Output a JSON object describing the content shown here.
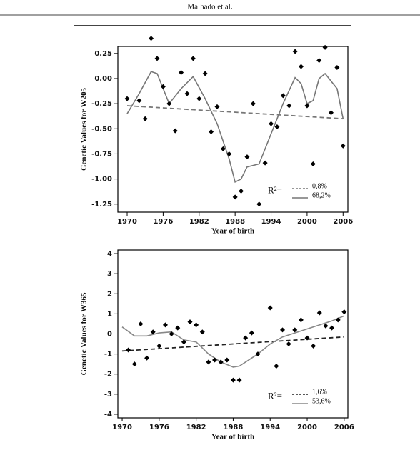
{
  "header": {
    "running_head": "Malhado et al."
  },
  "chart_data": [
    {
      "type": "scatter",
      "xlabel": "Year of birth",
      "ylabel": "Genetic Values for W205",
      "xlim": [
        1968.45,
        2006.8
      ],
      "ylim": [
        -1.33,
        0.32
      ],
      "xticks": [
        1970,
        1976,
        1982,
        1988,
        1994,
        2000,
        2006
      ],
      "yticks": [
        0.25,
        {
          "value": 0,
          "label": "0.00"
        },
        -0.25,
        {
          "value": -0.5,
          "label": "-0.50"
        },
        -0.75,
        {
          "value": -1,
          "label": "-1.00"
        },
        -1.25
      ],
      "points": {
        "color": "#000000",
        "x": [
          1970,
          1972,
          1973,
          1974,
          1975,
          1976,
          1977,
          1978,
          1979,
          1980,
          1981,
          1982,
          1983,
          1984,
          1985,
          1986,
          1987,
          1988,
          1989,
          1990,
          1991,
          1992,
          1993,
          1994,
          1995,
          1996,
          1997,
          1998,
          1999,
          2000,
          2001,
          2002,
          2003,
          2004,
          2005,
          2006
        ],
        "values": [
          -0.2,
          -0.22,
          -0.4,
          0.4,
          0.2,
          -0.08,
          -0.25,
          -0.52,
          0.06,
          -0.15,
          0.2,
          -0.2,
          0.05,
          -0.53,
          -0.28,
          -0.7,
          -0.75,
          -1.18,
          -1.12,
          -0.78,
          -0.25,
          -1.25,
          -0.84,
          -0.45,
          -0.48,
          -0.17,
          -0.27,
          0.27,
          0.12,
          -0.27,
          -0.85,
          0.18,
          0.31,
          -0.34,
          0.11,
          -0.67
        ]
      },
      "legend_prefix": "R²=",
      "series": [
        {
          "name": "0,8%",
          "color": "#777777",
          "dashed": true,
          "x": [
            1970,
            2006
          ],
          "values": [
            -0.27,
            -0.4
          ]
        },
        {
          "name": "68,2%",
          "color": "#777777",
          "dashed": false,
          "x": [
            1970,
            1972,
            1974,
            1975,
            1977,
            1979,
            1981,
            1983,
            1985,
            1987,
            1988,
            1989,
            1990,
            1992,
            1994,
            1996,
            1998,
            1999,
            2000,
            2001,
            2002,
            2003,
            2005,
            2006
          ],
          "values": [
            -0.35,
            -0.15,
            0.07,
            0.05,
            -0.25,
            -0.1,
            0.02,
            -0.2,
            -0.45,
            -0.8,
            -1.03,
            -1.0,
            -0.88,
            -0.85,
            -0.55,
            -0.25,
            0.01,
            -0.05,
            -0.25,
            -0.22,
            0.0,
            0.05,
            -0.1,
            -0.4
          ]
        }
      ]
    },
    {
      "type": "scatter",
      "xlabel": "Year of birth",
      "ylabel": "Genetic Values for W365",
      "xlim": [
        1969.3,
        2006.6
      ],
      "ylim": [
        -4.18,
        4.18
      ],
      "xticks": [
        1970,
        1976,
        1982,
        1988,
        1994,
        2000,
        2006
      ],
      "yticks": [
        4,
        3,
        2,
        1,
        0,
        -1,
        -2,
        -3,
        -4
      ],
      "points": {
        "color": "#000000",
        "x": [
          1971,
          1972,
          1973,
          1974,
          1975,
          1976,
          1977,
          1978,
          1979,
          1980,
          1981,
          1982,
          1983,
          1984,
          1985,
          1986,
          1987,
          1988,
          1989,
          1990,
          1991,
          1992,
          1994,
          1995,
          1996,
          1997,
          1998,
          1999,
          2000,
          2001,
          2002,
          2003,
          2004,
          2005,
          2006
        ],
        "values": [
          -0.8,
          -1.5,
          0.5,
          -1.2,
          0.1,
          -0.6,
          0.45,
          0.0,
          0.3,
          -0.4,
          0.6,
          0.45,
          0.1,
          -1.4,
          -1.3,
          -1.4,
          -1.3,
          -2.3,
          -2.3,
          -0.2,
          0.05,
          -1.0,
          1.3,
          -1.6,
          0.2,
          -0.5,
          0.2,
          0.7,
          -0.2,
          -0.6,
          1.05,
          0.4,
          0.3,
          0.7,
          1.1
        ]
      },
      "legend_prefix": "R²=",
      "series": [
        {
          "name": "1,6%",
          "color": "#222222",
          "dashed": true,
          "x": [
            1970,
            2006
          ],
          "values": [
            -0.85,
            -0.15
          ]
        },
        {
          "name": "53,6%",
          "color": "#888888",
          "dashed": false,
          "x": [
            1970,
            1972,
            1974,
            1976,
            1978,
            1980,
            1982,
            1984,
            1986,
            1988,
            1989,
            1990,
            1992,
            1994,
            1996,
            1998,
            2000,
            2002,
            2004,
            2006
          ],
          "values": [
            0.35,
            -0.1,
            -0.1,
            0.05,
            0.1,
            -0.3,
            -0.4,
            -1.0,
            -1.4,
            -1.65,
            -1.6,
            -1.4,
            -1.0,
            -0.5,
            -0.15,
            0.05,
            0.25,
            0.45,
            0.65,
            0.9
          ]
        }
      ]
    }
  ]
}
